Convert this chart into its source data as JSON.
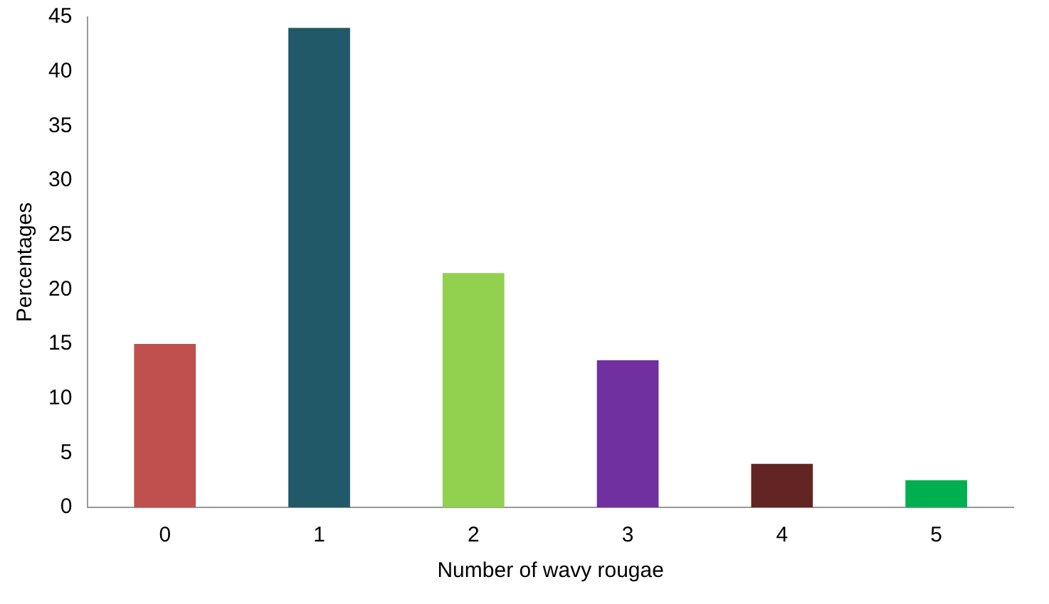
{
  "chart_data": {
    "type": "bar",
    "xlabel": "Number of wavy rougae",
    "ylabel": "Percentages",
    "categories": [
      "0",
      "1",
      "2",
      "3",
      "4",
      "5"
    ],
    "values": [
      15,
      44,
      21.5,
      13.5,
      4,
      2.5
    ],
    "colors": [
      "#c0504d",
      "#215968",
      "#92d050",
      "#7030a0",
      "#632523",
      "#00b050"
    ],
    "ylim": [
      0,
      45
    ],
    "yticks": [
      0,
      5,
      10,
      15,
      20,
      25,
      30,
      35,
      40,
      45
    ],
    "grid": false,
    "legend": false
  }
}
